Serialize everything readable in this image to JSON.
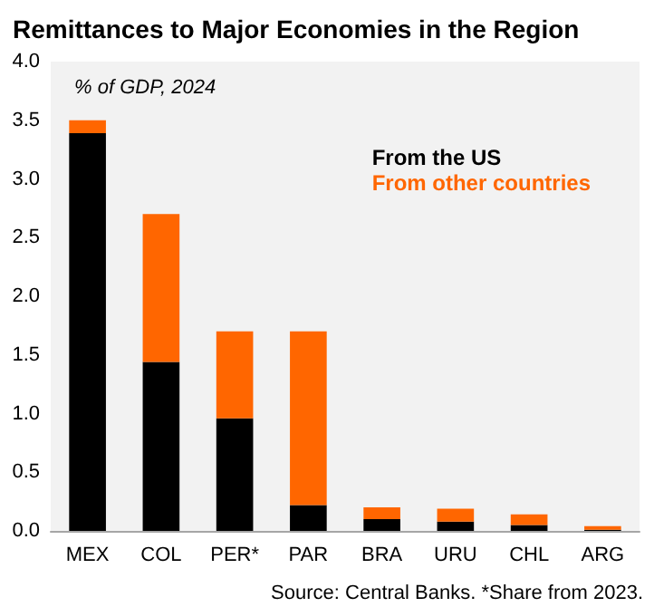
{
  "chart_data": {
    "type": "bar",
    "title": "Remittances to Major Economies in the Region",
    "subtitle": "% of GDP, 2024",
    "categories": [
      "MEX",
      "COL",
      "PER*",
      "PAR",
      "BRA",
      "URU",
      "CHL",
      "ARG"
    ],
    "series": [
      {
        "name": "From the US",
        "color": "#000000",
        "values": [
          3.39,
          1.44,
          0.96,
          0.22,
          0.1,
          0.08,
          0.05,
          0.01
        ]
      },
      {
        "name": "From other countries",
        "color": "#ff6600",
        "values": [
          0.11,
          1.26,
          0.74,
          1.48,
          0.1,
          0.11,
          0.09,
          0.03
        ]
      }
    ],
    "stacked": true,
    "ylim": [
      0,
      4
    ],
    "yticks": [
      {
        "value": 0,
        "label": "0.0"
      },
      0.5,
      {
        "value": 1,
        "label": "1.0"
      },
      1.5,
      {
        "value": 2,
        "label": "2.0"
      },
      2.5,
      {
        "value": 3,
        "label": "3.0"
      },
      3.5,
      {
        "value": 4,
        "label": "4.0"
      }
    ],
    "grid": false,
    "legend": "top right",
    "annotations": [
      "Source: Central Banks. *Share from 2023."
    ]
  }
}
